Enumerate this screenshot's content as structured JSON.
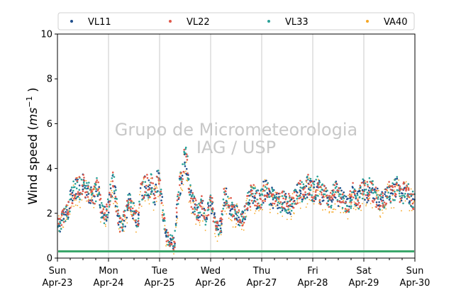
{
  "chart_data": {
    "type": "scatter",
    "ylabel": "Wind speed",
    "ylabel_unit_base": "ms",
    "ylabel_unit_exp": "−1",
    "ylim": [
      0,
      10
    ],
    "yticks": [
      "0",
      "2",
      "4",
      "6",
      "8",
      "10"
    ],
    "x_range": [
      "2023-04-23",
      "2023-04-30"
    ],
    "xticks": [
      {
        "day": "Sun",
        "date": "Apr-23"
      },
      {
        "day": "Mon",
        "date": "Apr-24"
      },
      {
        "day": "Tue",
        "date": "Apr-25"
      },
      {
        "day": "Wed",
        "date": "Apr-26"
      },
      {
        "day": "Thu",
        "date": "Apr-27"
      },
      {
        "day": "Fri",
        "date": "Apr-28"
      },
      {
        "day": "Sat",
        "date": "Apr-29"
      },
      {
        "day": "Sun",
        "date": "Apr-30"
      }
    ],
    "grid": "vertical",
    "legend_position": "top",
    "threshold_line": {
      "value": 0.3,
      "color": "#3aa66a"
    },
    "watermark": [
      "Grupo de Micrometeorologia",
      "IAG / USP"
    ],
    "series": [
      {
        "name": "VL11",
        "color": "#1f4e8c",
        "marker": "dot"
      },
      {
        "name": "VL22",
        "color": "#e0584a",
        "marker": "dot"
      },
      {
        "name": "VL33",
        "color": "#2aa198",
        "marker": "dot"
      },
      {
        "name": "VA40",
        "color": "#f5a623",
        "marker": "dot"
      }
    ],
    "profile_hourly_mean": [
      1.6,
      1.5,
      1.7,
      1.9,
      2.0,
      2.1,
      2.6,
      2.9,
      3.0,
      3.1,
      3.2,
      3.0,
      3.3,
      3.1,
      2.9,
      2.9,
      2.8,
      2.7,
      3.0,
      3.2,
      2.5,
      2.0,
      1.9,
      2.0,
      2.3,
      3.0,
      3.4,
      3.0,
      2.2,
      1.6,
      1.4,
      1.7,
      1.8,
      2.4,
      2.5,
      2.2,
      2.1,
      1.8,
      1.7,
      2.9,
      3.1,
      3.2,
      3.3,
      3.1,
      3.3,
      2.9,
      2.8,
      3.5,
      3.3,
      2.5,
      1.8,
      1.0,
      0.9,
      0.8,
      0.7,
      0.6,
      2.0,
      3.0,
      3.4,
      4.0,
      4.5,
      4.2,
      3.0,
      2.6,
      2.4,
      2.2,
      2.0,
      2.1,
      2.4,
      2.0,
      1.8,
      2.3,
      2.5,
      2.2,
      1.6,
      1.4,
      1.3,
      1.5,
      2.6,
      2.8,
      2.6,
      2.4,
      2.2,
      2.0,
      2.1,
      1.9,
      1.7,
      1.8,
      2.0,
      2.4,
      2.6,
      2.8,
      2.9,
      2.7,
      2.6,
      2.6,
      2.7,
      3.0,
      3.0,
      2.9,
      2.8,
      2.7,
      2.6,
      2.6,
      2.5,
      2.4,
      2.6,
      2.5,
      2.4,
      2.5,
      2.3,
      2.6,
      2.8,
      2.9,
      3.0,
      3.0,
      2.9,
      3.1,
      3.3,
      3.1,
      3.0,
      3.0,
      3.2,
      3.0,
      2.8,
      2.9,
      2.8,
      2.7,
      2.6,
      2.7,
      2.9,
      3.0,
      2.7,
      2.8,
      2.6,
      2.5,
      2.4,
      2.5,
      2.7,
      3.0,
      2.8,
      2.6,
      2.7,
      3.0,
      3.1,
      3.0,
      2.9,
      3.2,
      3.0,
      2.8,
      2.7,
      2.6,
      2.5,
      2.6,
      2.7,
      2.8,
      3.0,
      2.9,
      3.0,
      3.1,
      3.2,
      2.9,
      2.8,
      3.0,
      3.1,
      2.9,
      2.7,
      2.6
    ]
  }
}
